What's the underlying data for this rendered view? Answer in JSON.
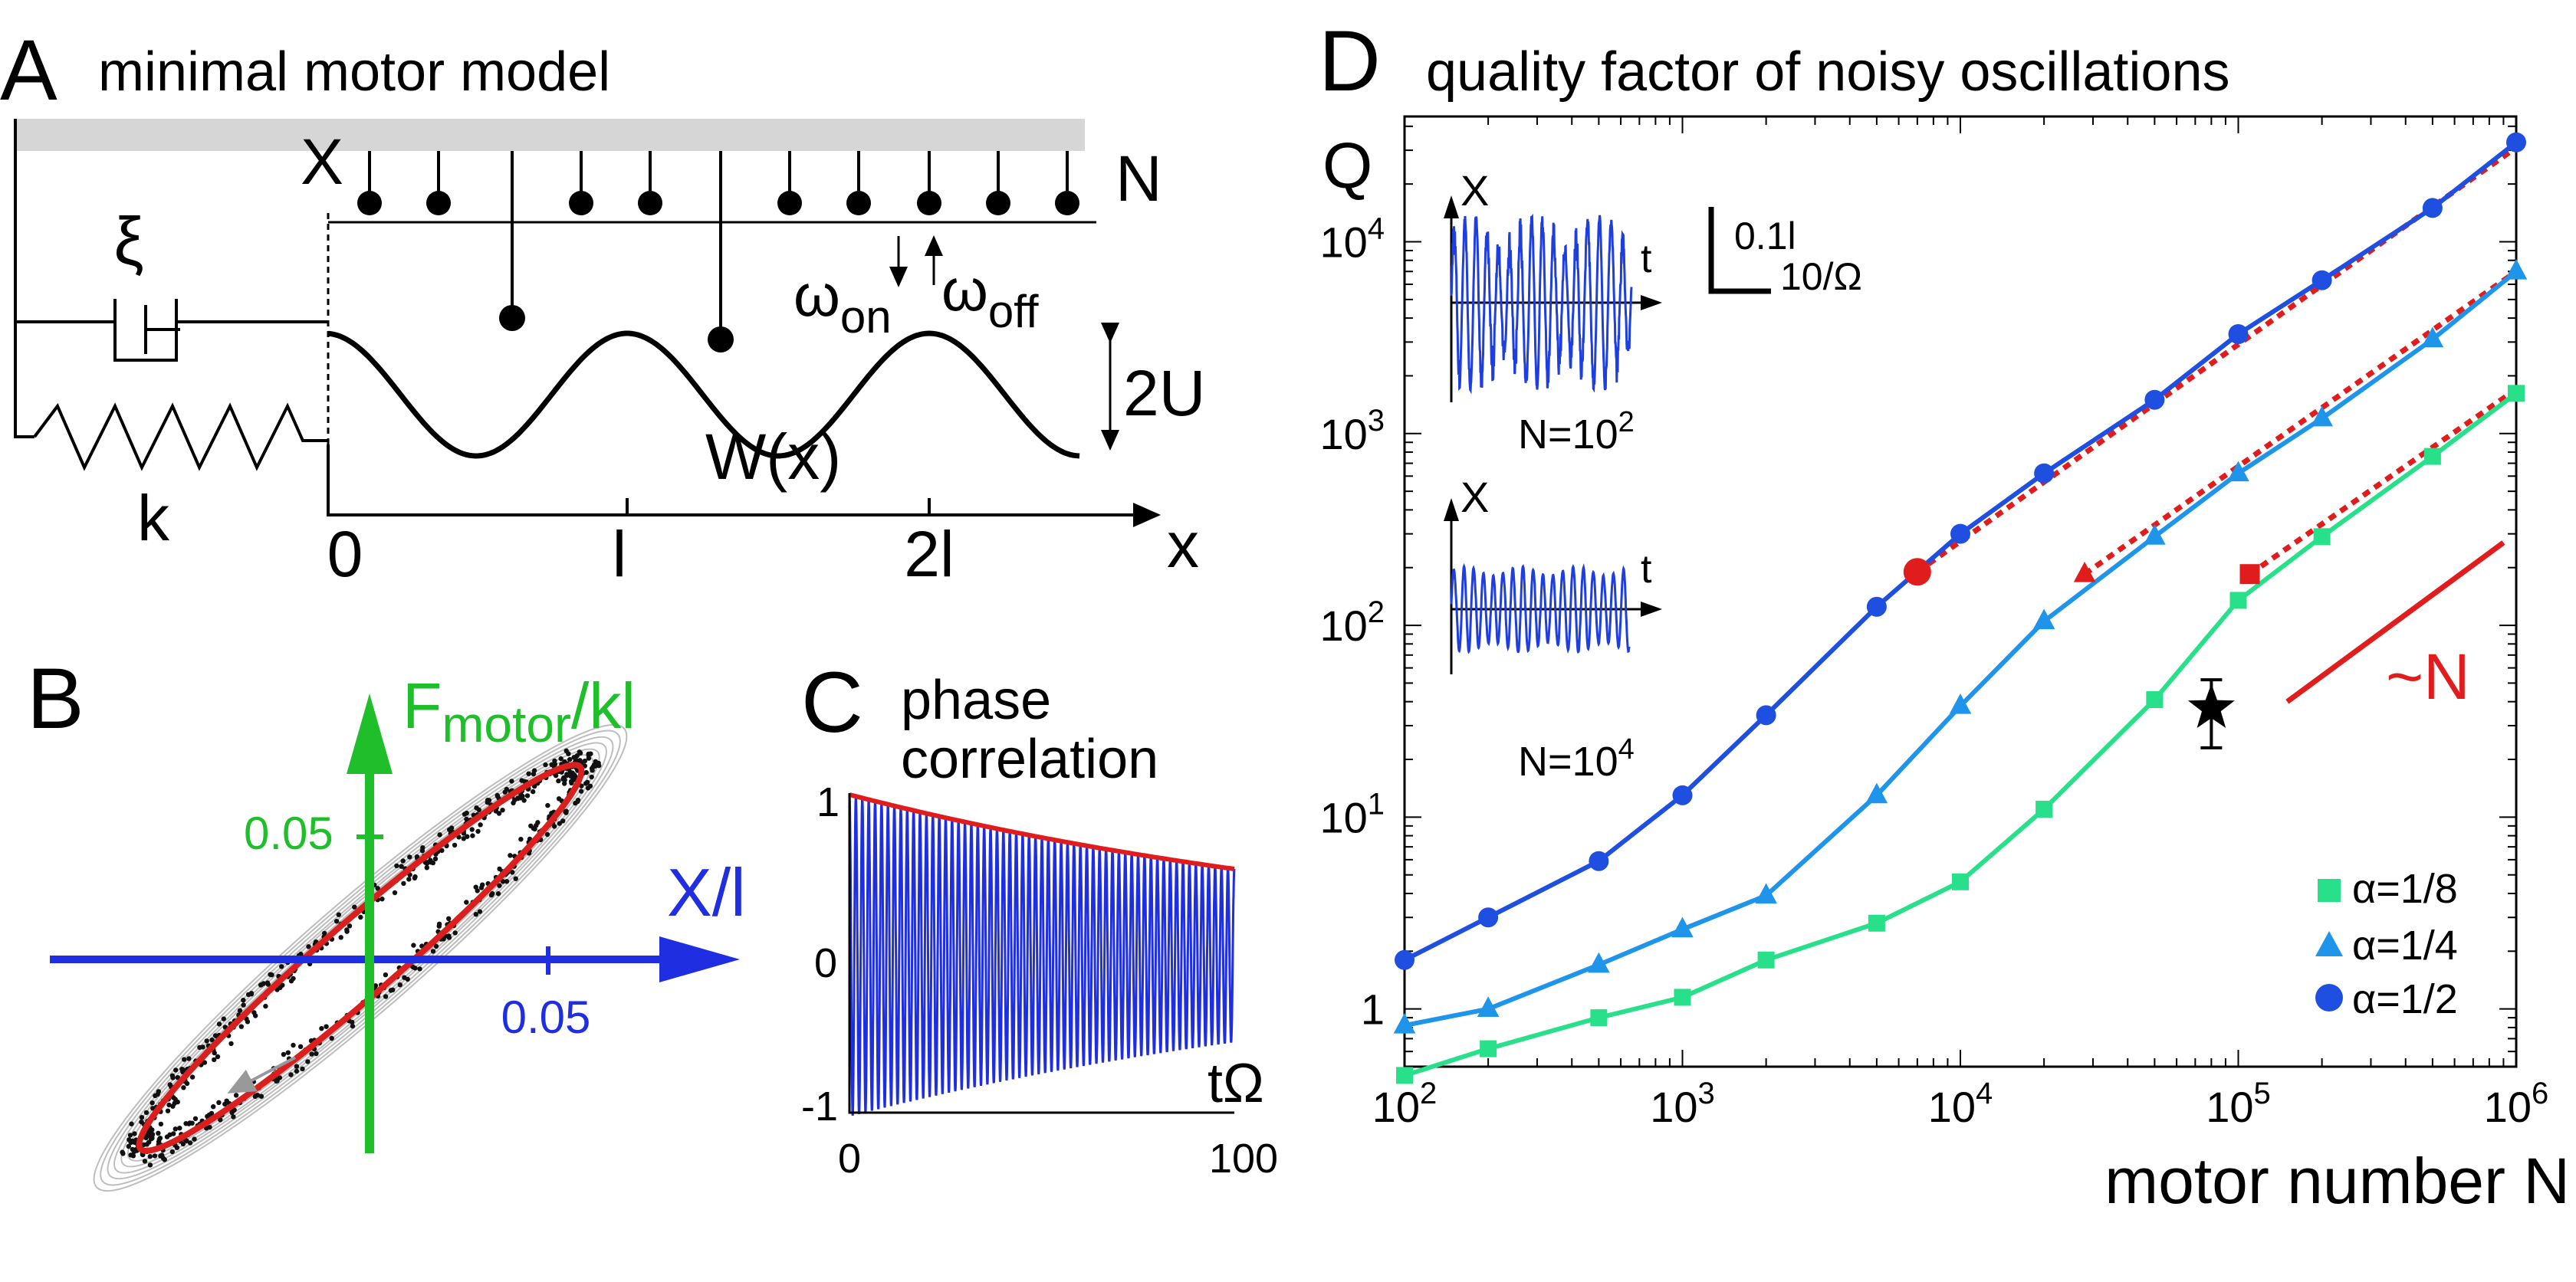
{
  "panels": {
    "a": {
      "letter": "A",
      "title": "minimal motor model",
      "labels": {
        "X": "X",
        "N": "N",
        "xi": "ξ",
        "k": "k",
        "omega_on": "ω",
        "on_sub": "on",
        "omega_off": "ω",
        "off_sub": "off",
        "two_u": "2U",
        "w_of_x": "W(x)",
        "x_axis": "x"
      },
      "ticks": [
        "0",
        "l",
        "2l"
      ]
    },
    "b": {
      "letter": "B",
      "y_label": "F",
      "y_sub": "motor",
      "y_tail": "/kl",
      "y_tick": "0.05",
      "x_label": "X/l",
      "x_tick": "0.05"
    },
    "c": {
      "letter": "C",
      "title_line1": "phase",
      "title_line2": "correlation",
      "y_ticks": [
        "1",
        "0",
        "-1"
      ],
      "x_ticks": [
        "0",
        "100"
      ],
      "x_label": "tΩ"
    },
    "d": {
      "letter": "D",
      "title": "quality factor of noisy oscillations",
      "y_label": "Q",
      "x_label": "motor number N",
      "y_ticks": [
        "1",
        "10",
        "10",
        "10",
        "10"
      ],
      "y_exps": [
        "",
        "1",
        "2",
        "3",
        "4"
      ],
      "x_ticks": [
        "10",
        "10",
        "10",
        "10",
        "10"
      ],
      "x_exps": [
        "2",
        "3",
        "4",
        "5",
        "6"
      ],
      "inset1_label": "N=10",
      "inset1_exp": "2",
      "inset2_label": "N=10",
      "inset2_exp": "4",
      "inset_x": "X",
      "inset_t": "t",
      "scale_label_top": "0.1l",
      "scale_label_bottom": "10/Ω",
      "scaling": "~N",
      "legend": [
        "α=1/8",
        "α=1/4",
        "α=1/2"
      ]
    }
  },
  "chart_data": {
    "type": "line",
    "title": "quality factor of noisy oscillations",
    "xlabel": "motor number N",
    "ylabel": "Q",
    "xscale": "log",
    "yscale": "log",
    "xlim": [
      100,
      1000000
    ],
    "ylim": [
      0.5,
      45000
    ],
    "series": [
      {
        "name": "α=1/2",
        "color": "#1f4fe0",
        "marker": "circle",
        "x": [
          100,
          200,
          500,
          1000,
          2000,
          5000,
          10000,
          20000,
          50000,
          100000,
          200000,
          500000,
          1000000
        ],
        "values": [
          1.8,
          3.0,
          5.9,
          13,
          34,
          125,
          300,
          620,
          1500,
          3300,
          6300,
          15000,
          33000
        ]
      },
      {
        "name": "α=1/4",
        "color": "#1e95ea",
        "marker": "triangle",
        "x": [
          100,
          200,
          500,
          1000,
          2000,
          5000,
          10000,
          20000,
          50000,
          100000,
          200000,
          500000,
          1000000
        ],
        "values": [
          0.82,
          1.0,
          1.7,
          2.6,
          3.9,
          13,
          38,
          105,
          290,
          620,
          1200,
          3100,
          7000
        ]
      },
      {
        "name": "α=1/8",
        "color": "#29e08a",
        "marker": "square",
        "x": [
          100,
          200,
          500,
          1000,
          2000,
          5000,
          10000,
          20000,
          50000,
          100000,
          200000,
          500000,
          1000000
        ],
        "values": [
          0.45,
          0.62,
          0.9,
          1.15,
          1.8,
          2.8,
          4.6,
          11,
          41,
          135,
          290,
          760,
          1620
        ]
      }
    ],
    "asymptotes": [
      {
        "x": [
          7000,
          1000000
        ],
        "values": [
          190,
          31000
        ],
        "marker": "circle"
      },
      {
        "x": [
          28000,
          1000000
        ],
        "values": [
          185,
          7000
        ],
        "marker": "triangle"
      },
      {
        "x": [
          110000,
          1000000
        ],
        "values": [
          185,
          1700
        ],
        "marker": "square"
      }
    ],
    "experimental_point": {
      "x": 80000,
      "value": 37,
      "err_low": 23,
      "err_high": 52
    },
    "reference_line": {
      "label": "~N",
      "x": [
        150000,
        900000
      ],
      "values": [
        40,
        270
      ]
    }
  }
}
